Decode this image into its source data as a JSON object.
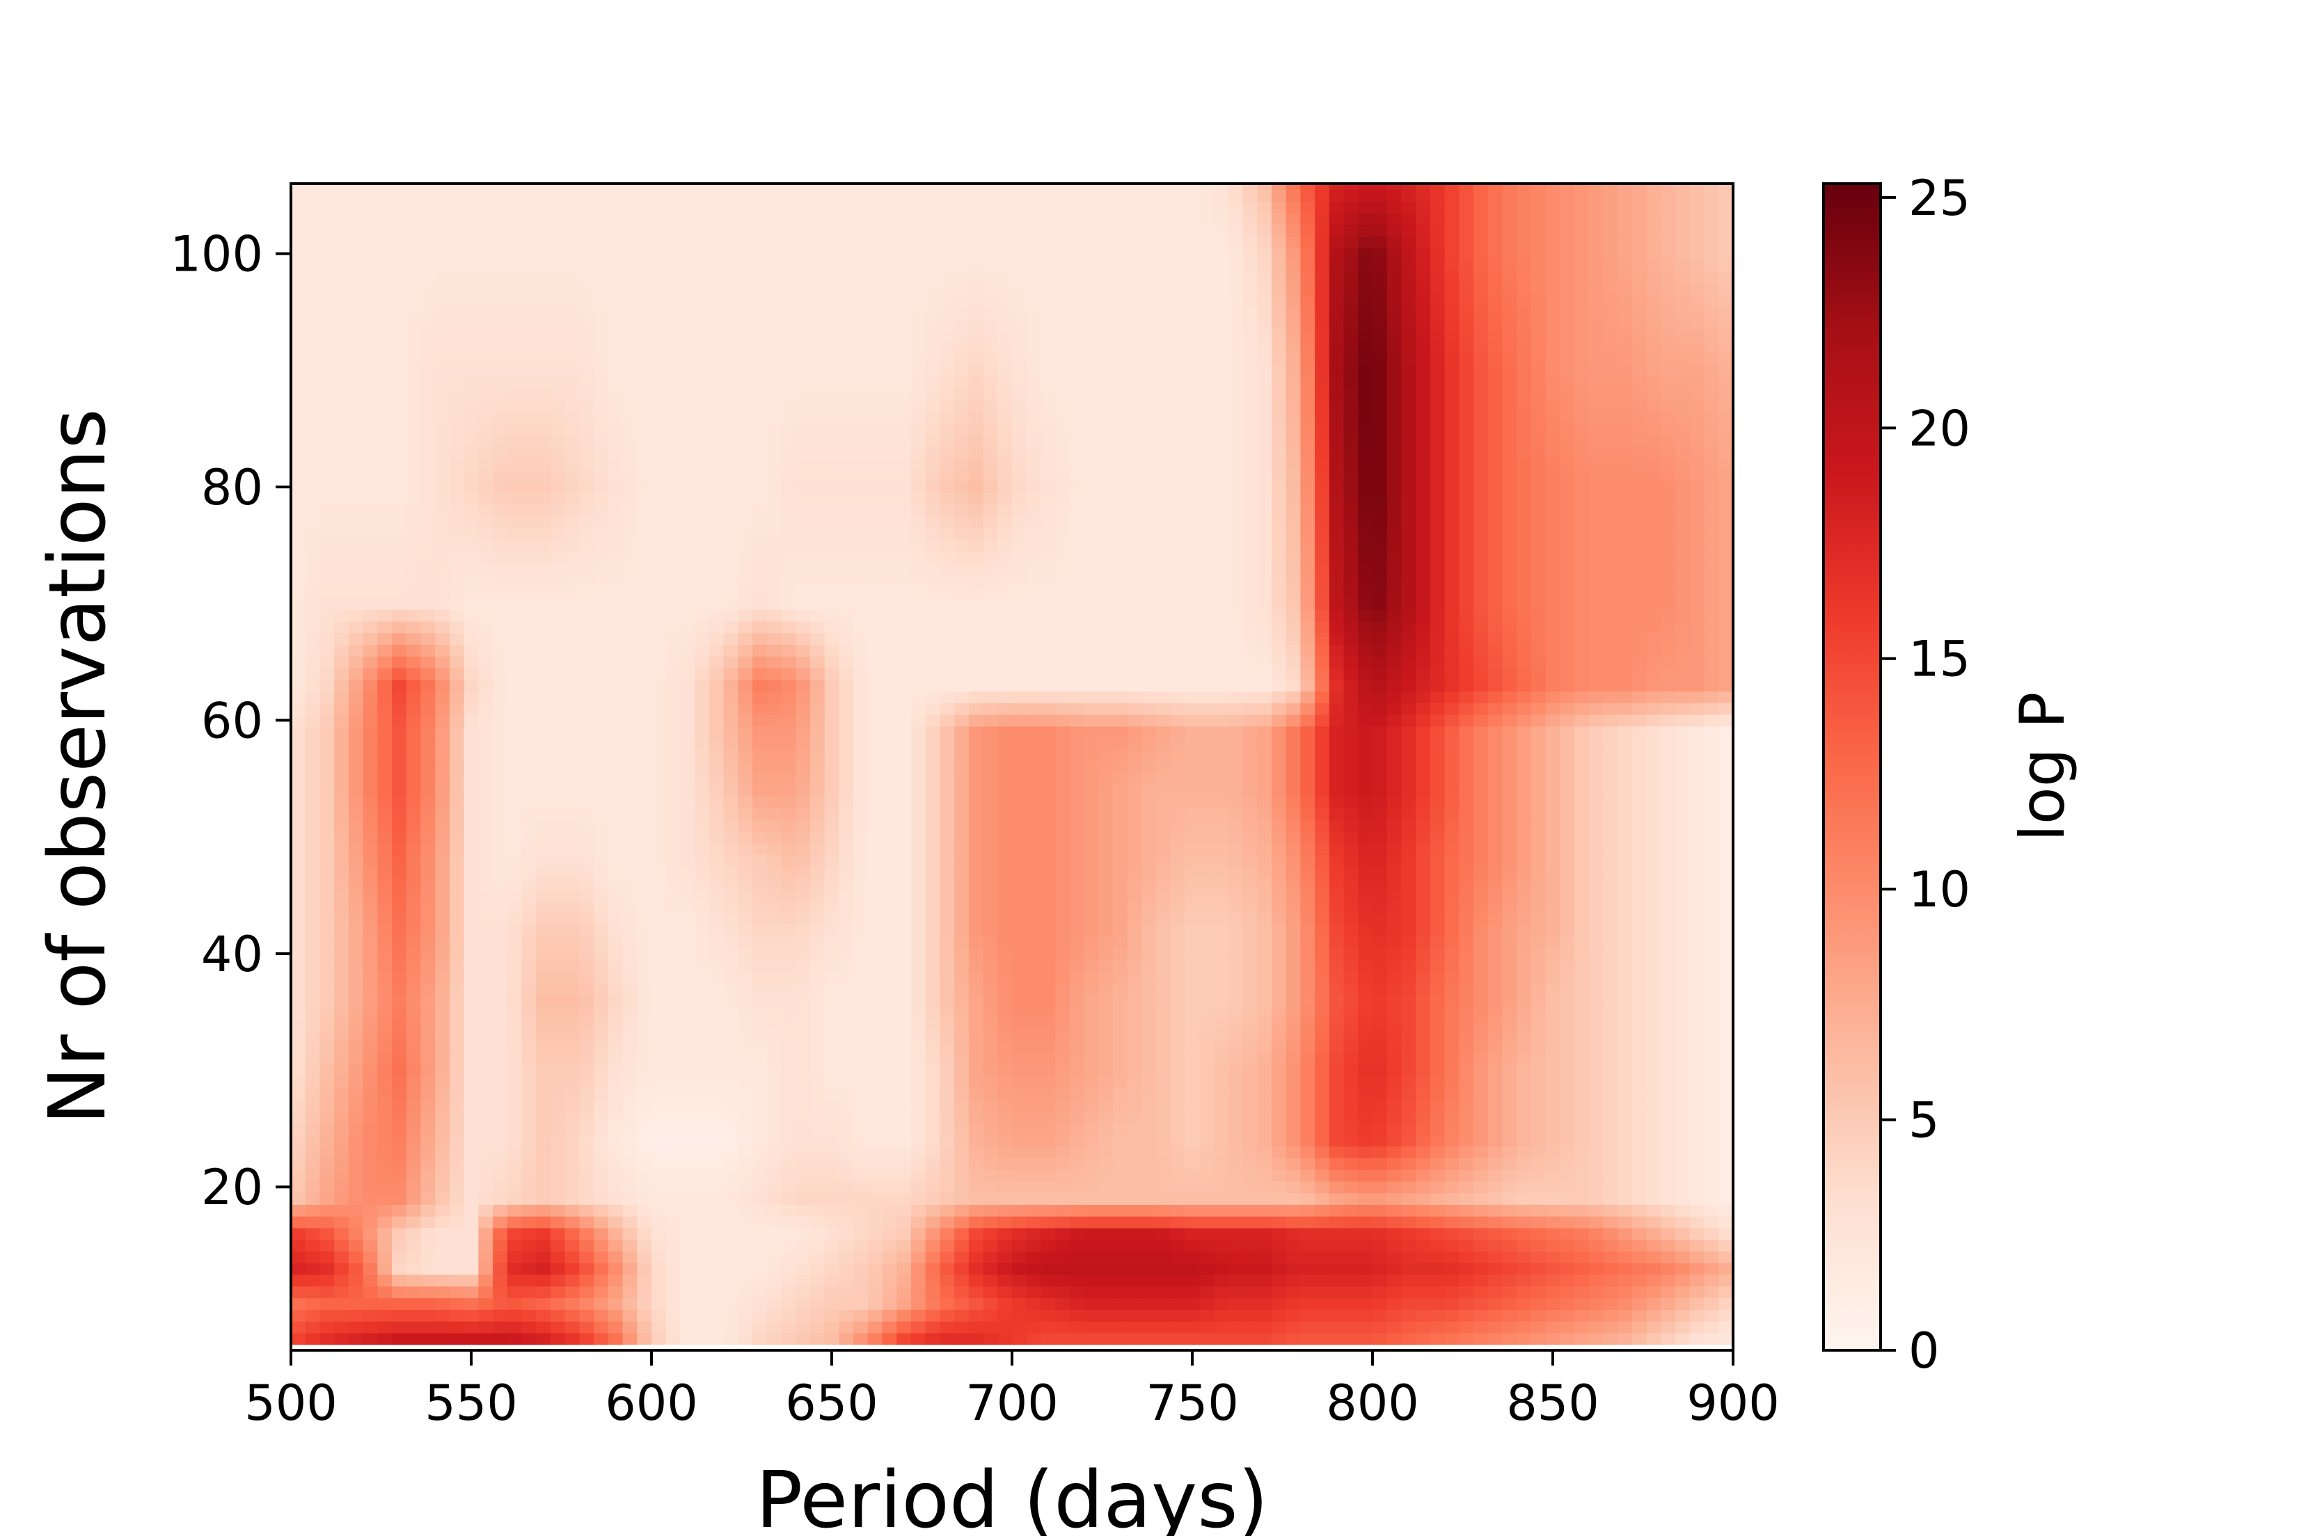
{
  "chart_data": {
    "type": "heatmap",
    "title": "",
    "xlabel": "Period (days)",
    "ylabel": "Nr of observations",
    "colorbar_label": "log P",
    "colormap": "Reds",
    "x_range": [
      500,
      900
    ],
    "y_range": [
      6,
      106
    ],
    "value_range": [
      0,
      25.3
    ],
    "x_ticks": [
      "500",
      "550",
      "600",
      "650",
      "700",
      "750",
      "800",
      "850",
      "900"
    ],
    "y_ticks": [
      "20",
      "40",
      "60",
      "80",
      "100"
    ],
    "colorbar_ticks": [
      "0",
      "5",
      "10",
      "15",
      "20",
      "25"
    ],
    "z_grid": {
      "x": [
        500,
        510,
        520,
        530,
        540,
        550,
        560,
        570,
        580,
        590,
        600,
        610,
        620,
        630,
        640,
        650,
        660,
        670,
        680,
        690,
        700,
        710,
        720,
        730,
        740,
        750,
        760,
        770,
        780,
        790,
        800,
        810,
        820,
        830,
        840,
        850,
        860,
        870,
        880,
        890,
        900
      ],
      "y": [
        7,
        10,
        13,
        16,
        19,
        24,
        30,
        36,
        42,
        48,
        54,
        59,
        63,
        70,
        80,
        90,
        100,
        106
      ],
      "z": [
        [
          15,
          17,
          18,
          19,
          19,
          19,
          19,
          18,
          16,
          12,
          5,
          2,
          2,
          4,
          5,
          6,
          10,
          15,
          17,
          17,
          16,
          15,
          15,
          15,
          15,
          15,
          15,
          15,
          14,
          14,
          14,
          13,
          12,
          11,
          10,
          9,
          8,
          7,
          5,
          3,
          2
        ],
        [
          12,
          13,
          13,
          13,
          13,
          12,
          14,
          13,
          11,
          8,
          4,
          2,
          2,
          3,
          4,
          5,
          5,
          8,
          12,
          14,
          16,
          17,
          18,
          18,
          18,
          18,
          17,
          17,
          16,
          16,
          16,
          15,
          15,
          14,
          13,
          12,
          11,
          10,
          8,
          6,
          4
        ],
        [
          18,
          17,
          13,
          4,
          3,
          3,
          17,
          18,
          15,
          10,
          4,
          2,
          2,
          2,
          3,
          4,
          5,
          7,
          13,
          17,
          19,
          20,
          20,
          20,
          20,
          20,
          19,
          19,
          18,
          18,
          18,
          17,
          17,
          16,
          15,
          14,
          13,
          12,
          11,
          9,
          7
        ],
        [
          16,
          14,
          10,
          5,
          3,
          3,
          15,
          16,
          12,
          7,
          3,
          2,
          2,
          2,
          2,
          3,
          4,
          5,
          10,
          15,
          17,
          18,
          19,
          19,
          19,
          18,
          18,
          18,
          17,
          17,
          17,
          16,
          15,
          14,
          13,
          12,
          11,
          9,
          7,
          5,
          3
        ],
        [
          5,
          8,
          10,
          10,
          6,
          3,
          4,
          5,
          4,
          3,
          2,
          2,
          2,
          3,
          4,
          4,
          4,
          4,
          5,
          6,
          6,
          6,
          6,
          6,
          6,
          6,
          6,
          6,
          6,
          8,
          9,
          8,
          7,
          6,
          5,
          5,
          5,
          4,
          3,
          2,
          1
        ],
        [
          4,
          7,
          10,
          11,
          7,
          3,
          3,
          5,
          4,
          2,
          1,
          1,
          1,
          2,
          3,
          3,
          2,
          2,
          4,
          7,
          8,
          8,
          7,
          6,
          6,
          5,
          6,
          7,
          10,
          15,
          16,
          14,
          11,
          9,
          7,
          6,
          5,
          4,
          3,
          2,
          1
        ],
        [
          3,
          6,
          9,
          12,
          8,
          3,
          3,
          5,
          5,
          3,
          2,
          2,
          2,
          2,
          3,
          2,
          2,
          2,
          4,
          8,
          9,
          9,
          8,
          7,
          6,
          5,
          6,
          7,
          10,
          15,
          17,
          15,
          12,
          9,
          7,
          6,
          5,
          4,
          3,
          2,
          1
        ],
        [
          3,
          5,
          8,
          11,
          8,
          3,
          3,
          6,
          6,
          4,
          2,
          2,
          2,
          3,
          3,
          2,
          2,
          2,
          5,
          8,
          10,
          10,
          8,
          7,
          6,
          5,
          5,
          6,
          9,
          14,
          16,
          15,
          12,
          10,
          8,
          6,
          5,
          4,
          3,
          2,
          1
        ],
        [
          3,
          5,
          8,
          12,
          9,
          3,
          3,
          5,
          5,
          3,
          2,
          2,
          3,
          4,
          4,
          3,
          2,
          2,
          5,
          9,
          10,
          10,
          9,
          8,
          6,
          5,
          5,
          6,
          9,
          15,
          17,
          16,
          13,
          10,
          8,
          7,
          5,
          4,
          3,
          2,
          1
        ],
        [
          3,
          5,
          9,
          13,
          9,
          3,
          2,
          3,
          3,
          2,
          2,
          3,
          4,
          5,
          6,
          4,
          2,
          2,
          5,
          9,
          10,
          10,
          9,
          8,
          7,
          6,
          6,
          7,
          10,
          16,
          18,
          16,
          13,
          11,
          9,
          7,
          5,
          4,
          3,
          2,
          1
        ],
        [
          3,
          5,
          10,
          14,
          10,
          3,
          2,
          2,
          2,
          2,
          2,
          3,
          5,
          8,
          8,
          5,
          2,
          2,
          5,
          9,
          10,
          10,
          9,
          8,
          7,
          7,
          7,
          8,
          12,
          18,
          19,
          17,
          14,
          11,
          9,
          7,
          5,
          4,
          3,
          2,
          1
        ],
        [
          3,
          5,
          10,
          14,
          10,
          3,
          2,
          2,
          2,
          2,
          2,
          3,
          6,
          9,
          9,
          5,
          2,
          2,
          5,
          9,
          10,
          10,
          9,
          9,
          8,
          7,
          7,
          8,
          12,
          18,
          19,
          17,
          14,
          11,
          9,
          7,
          5,
          4,
          3,
          2,
          1
        ],
        [
          2,
          4,
          9,
          15,
          11,
          4,
          2,
          2,
          2,
          2,
          2,
          3,
          6,
          11,
          10,
          5,
          2,
          2,
          2,
          2,
          2,
          2,
          2,
          2,
          2,
          2,
          2,
          2,
          4,
          17,
          21,
          19,
          17,
          15,
          13,
          11,
          10,
          10,
          9,
          9,
          8
        ],
        [
          2,
          3,
          3,
          3,
          3,
          2,
          2,
          2,
          2,
          2,
          2,
          2,
          2,
          3,
          2,
          2,
          2,
          2,
          2,
          2,
          2,
          2,
          2,
          2,
          2,
          2,
          2,
          3,
          6,
          20,
          24,
          21,
          17,
          14,
          12,
          11,
          10,
          10,
          10,
          9,
          8
        ],
        [
          2,
          2,
          2,
          2,
          3,
          4,
          5,
          5,
          4,
          3,
          2,
          2,
          2,
          2,
          3,
          3,
          3,
          3,
          5,
          6,
          4,
          3,
          2,
          2,
          2,
          2,
          2,
          3,
          7,
          21,
          25,
          21,
          17,
          14,
          12,
          11,
          10,
          10,
          10,
          9,
          8
        ],
        [
          2,
          2,
          2,
          2,
          3,
          3,
          3,
          3,
          3,
          2,
          2,
          2,
          2,
          2,
          2,
          2,
          2,
          2,
          3,
          4,
          3,
          2,
          2,
          2,
          2,
          2,
          2,
          3,
          8,
          22,
          25,
          21,
          17,
          14,
          12,
          10,
          9,
          9,
          8,
          8,
          7
        ],
        [
          2,
          2,
          2,
          2,
          2,
          2,
          2,
          2,
          2,
          2,
          2,
          2,
          2,
          2,
          2,
          2,
          2,
          2,
          2,
          2,
          2,
          2,
          2,
          2,
          2,
          2,
          2,
          4,
          10,
          21,
          24,
          20,
          16,
          13,
          11,
          10,
          9,
          8,
          7,
          6,
          5
        ],
        [
          2,
          2,
          2,
          2,
          2,
          2,
          2,
          2,
          2,
          2,
          2,
          2,
          2,
          2,
          2,
          2,
          2,
          2,
          2,
          2,
          2,
          2,
          2,
          2,
          2,
          2,
          3,
          6,
          13,
          18,
          19,
          18,
          16,
          13,
          11,
          10,
          9,
          8,
          7,
          6,
          5
        ]
      ]
    }
  }
}
